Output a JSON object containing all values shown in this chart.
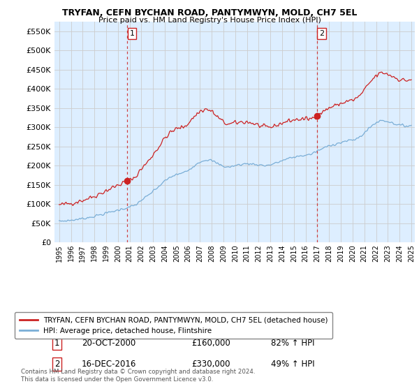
{
  "title": "TRYFAN, CEFN BYCHAN ROAD, PANTYMWYN, MOLD, CH7 5EL",
  "subtitle": "Price paid vs. HM Land Registry's House Price Index (HPI)",
  "ylim": [
    0,
    575000
  ],
  "yticks": [
    0,
    50000,
    100000,
    150000,
    200000,
    250000,
    300000,
    350000,
    400000,
    450000,
    500000,
    550000
  ],
  "sale1_year": 2000.79,
  "sale1_price": 160000,
  "sale1_label": "1",
  "sale1_date": "20-OCT-2000",
  "sale1_pct": "82% ↑ HPI",
  "sale2_year": 2016.96,
  "sale2_price": 330000,
  "sale2_label": "2",
  "sale2_date": "16-DEC-2016",
  "sale2_pct": "49% ↑ HPI",
  "hpi_color": "#7aaed6",
  "price_color": "#cc2222",
  "vline_color": "#cc2222",
  "chart_bg": "#ddeeff",
  "legend_label1": "TRYFAN, CEFN BYCHAN ROAD, PANTYMWYN, MOLD, CH7 5EL (detached house)",
  "legend_label2": "HPI: Average price, detached house, Flintshire",
  "footer": "Contains HM Land Registry data © Crown copyright and database right 2024.\nThis data is licensed under the Open Government Licence v3.0.",
  "background_color": "#ffffff",
  "grid_color": "#cccccc"
}
